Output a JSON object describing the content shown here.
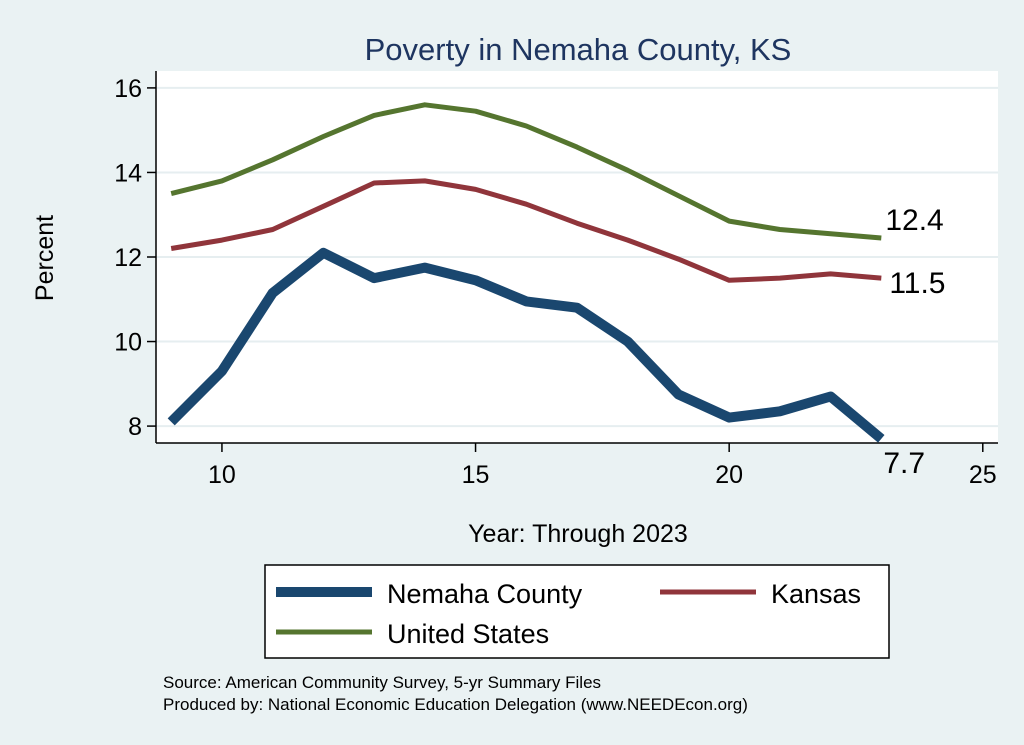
{
  "chart_data": {
    "type": "line",
    "title": "Poverty in Nemaha County, KS",
    "xlabel": "Year: Through 2023",
    "ylabel": "Percent",
    "xlim": [
      8.7,
      25.3
    ],
    "ylim": [
      7.6,
      16.4
    ],
    "xticks": [
      10,
      15,
      20,
      25
    ],
    "yticks": [
      8,
      10,
      12,
      14,
      16
    ],
    "grid": true,
    "x": [
      9,
      10,
      11,
      12,
      13,
      14,
      15,
      16,
      17,
      18,
      19,
      20,
      21,
      22,
      23
    ],
    "series": [
      {
        "name": "Nemaha County",
        "color": "#1a476f",
        "values": [
          8.1,
          9.3,
          11.15,
          12.1,
          11.5,
          11.75,
          11.45,
          10.95,
          10.8,
          10.0,
          8.75,
          8.2,
          8.35,
          8.7,
          7.7
        ],
        "end_label": "7.7"
      },
      {
        "name": "Kansas",
        "color": "#90353b",
        "values": [
          12.2,
          12.4,
          12.65,
          13.2,
          13.75,
          13.8,
          13.6,
          13.25,
          12.8,
          12.4,
          11.95,
          11.45,
          11.5,
          11.6,
          11.5
        ],
        "end_label": "11.5"
      },
      {
        "name": "United States",
        "color": "#55752f",
        "values": [
          13.5,
          13.8,
          14.3,
          14.85,
          15.35,
          15.6,
          15.45,
          15.1,
          14.6,
          14.05,
          13.45,
          12.85,
          12.65,
          12.55,
          12.45
        ],
        "end_label": "12.4"
      }
    ],
    "legend": {
      "position": "bottom",
      "entries": [
        "Nemaha County",
        "Kansas",
        "United States"
      ]
    },
    "notes": [
      "Source: American Community Survey, 5-yr Summary Files",
      "Produced by: National Economic Education Delegation (www.NEEDEcon.org)"
    ]
  }
}
